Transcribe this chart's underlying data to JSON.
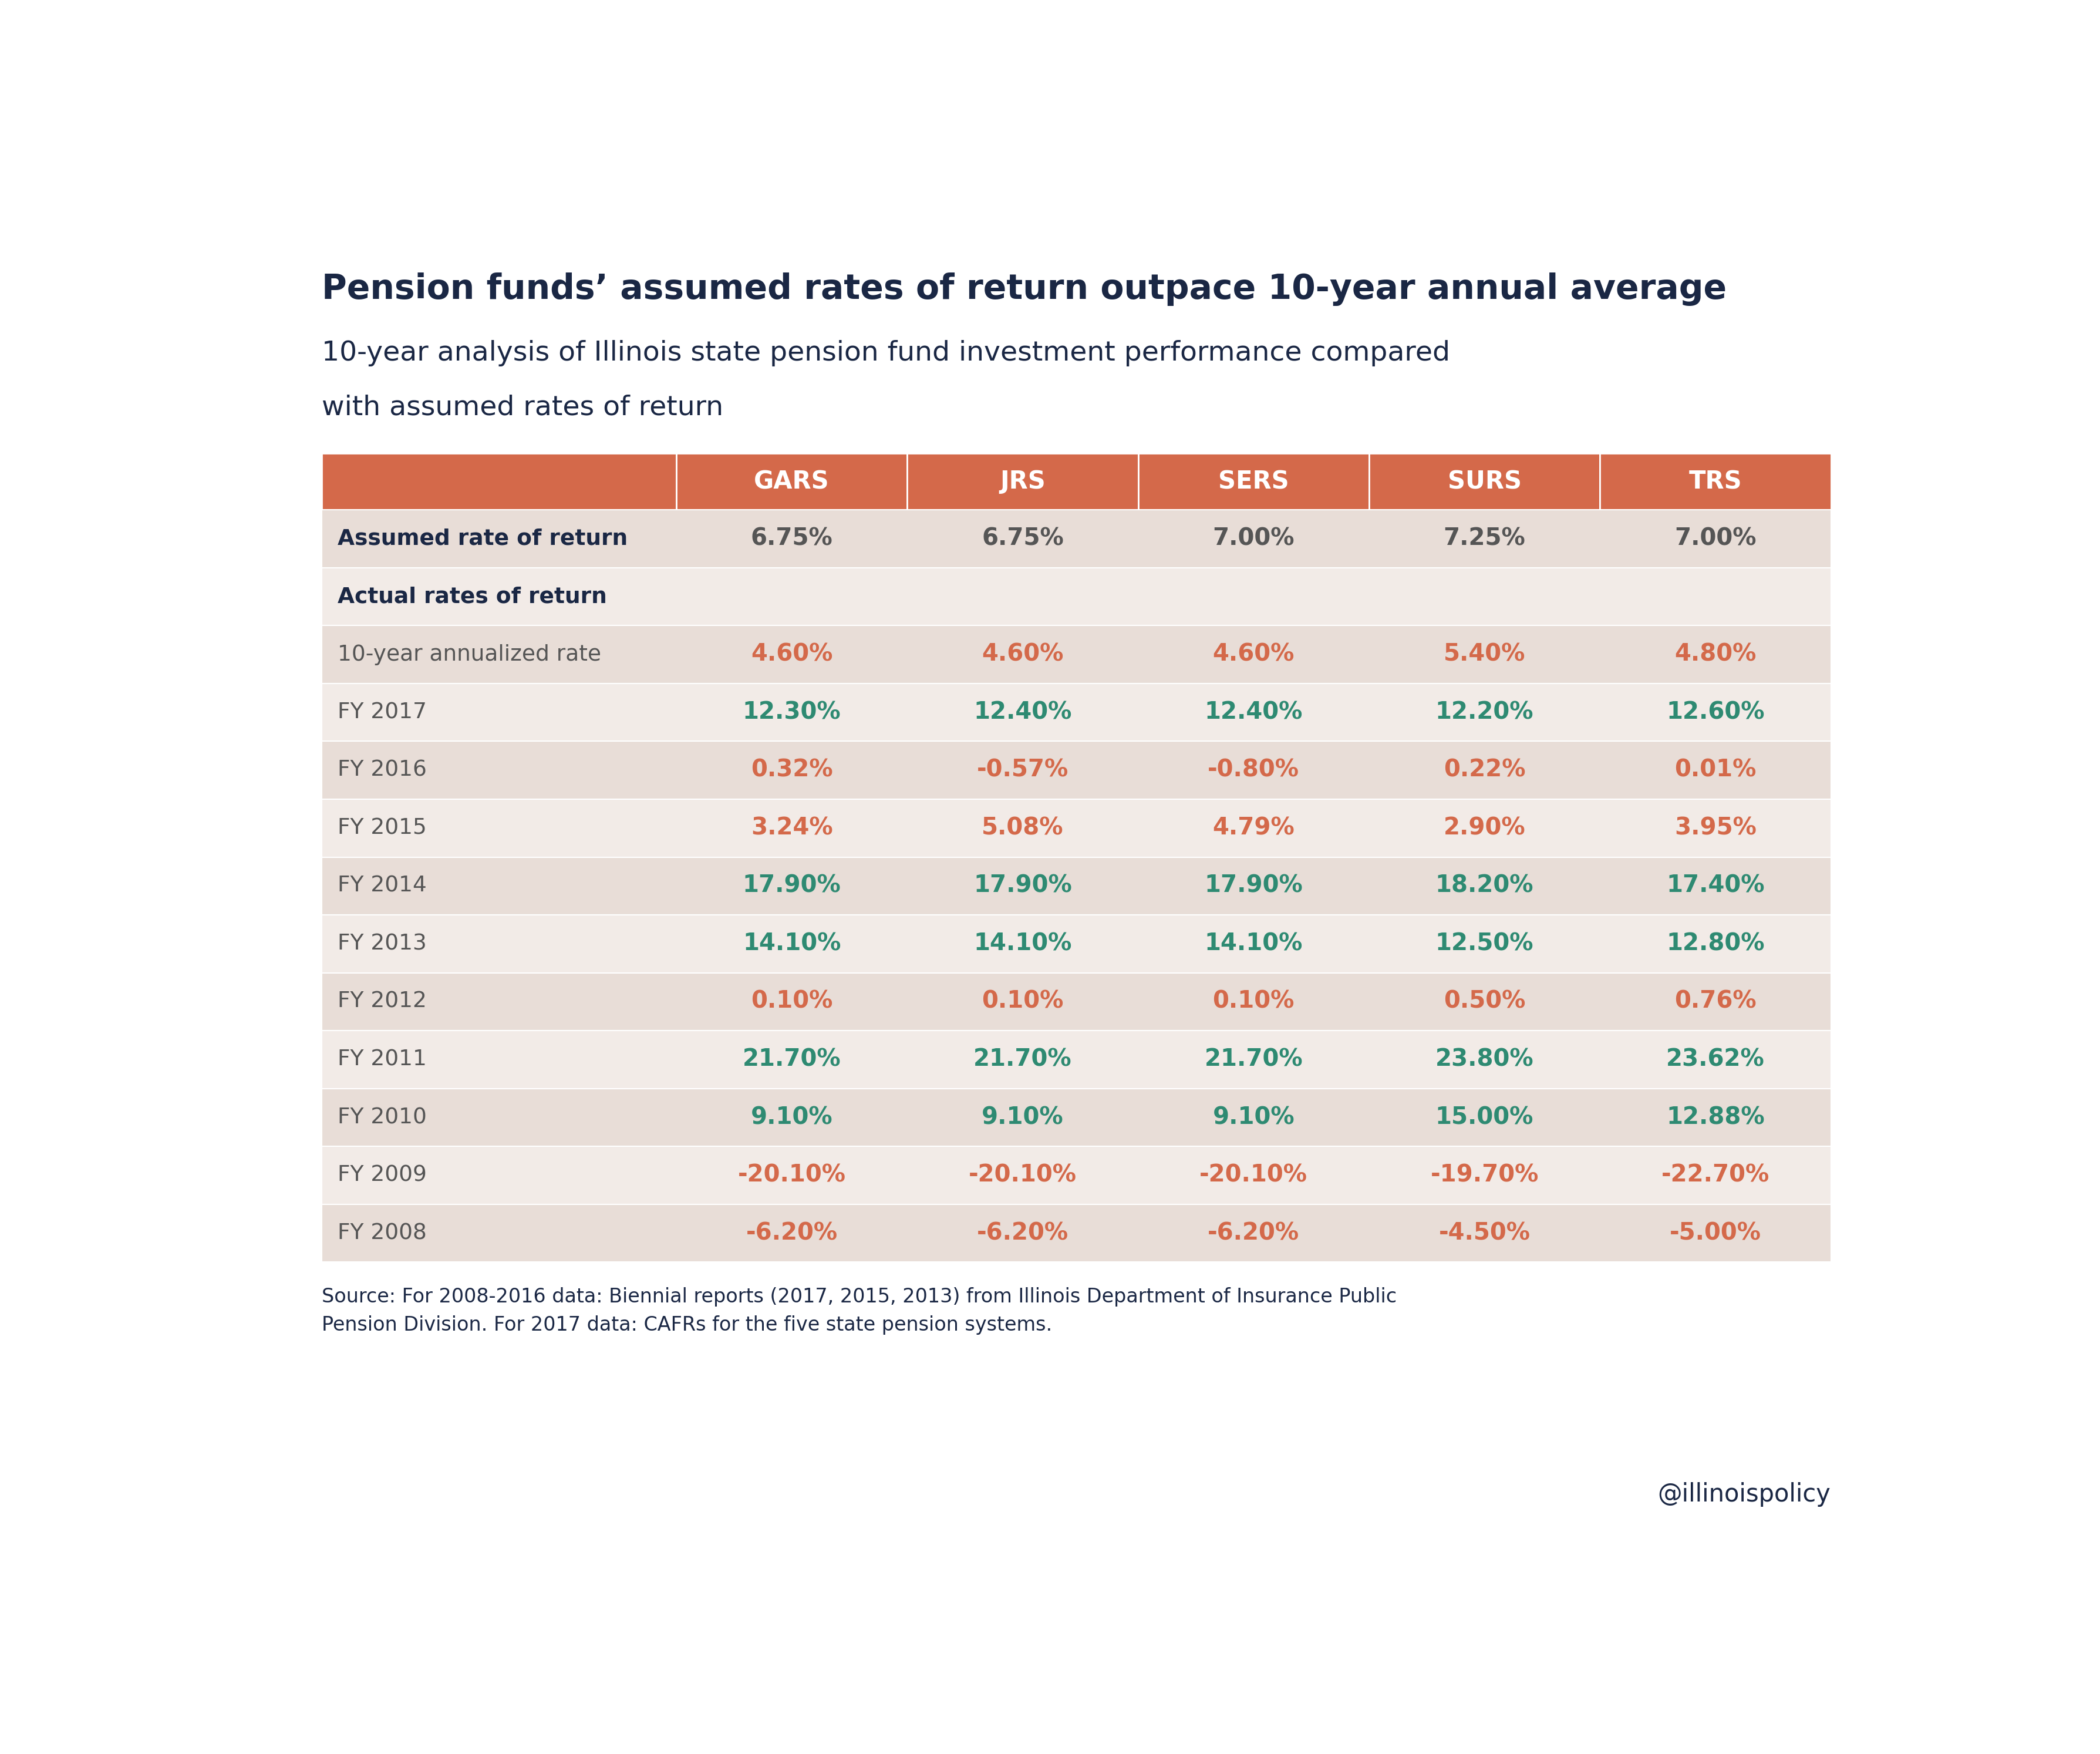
{
  "title": "Pension funds’ assumed rates of return outpace 10-year annual average",
  "subtitle_line1": "10-year analysis of Illinois state pension fund investment performance compared",
  "subtitle_line2": "with assumed rates of return",
  "source": "Source: For 2008-2016 data: Biennial reports (2017, 2015, 2013) from Illinois Department of Insurance Public\nPension Division. For 2017 data: CAFRs for the five state pension systems.",
  "watermark": "@illinoispolicy",
  "header_bg": "#d4694a",
  "header_text_color": "#ffffff",
  "row_bg_light": "#f2ebe7",
  "row_bg_dark": "#e8ddd7",
  "color_orange": "#d4694a",
  "color_green": "#2e8a72",
  "color_dark_navy": "#1a2744",
  "color_default": "#555555",
  "columns": [
    "",
    "GARS",
    "JRS",
    "SERS",
    "SURS",
    "TRS"
  ],
  "rows": [
    {
      "label": "Assumed rate of return",
      "values": [
        "6.75%",
        "6.75%",
        "7.00%",
        "7.25%",
        "7.00%"
      ],
      "colors": [
        "default",
        "default",
        "default",
        "default",
        "default"
      ],
      "bold_label": true,
      "bg": "dark"
    },
    {
      "label": "Actual rates of return",
      "values": [
        "",
        "",
        "",
        "",
        ""
      ],
      "colors": [
        "default",
        "default",
        "default",
        "default",
        "default"
      ],
      "bold_label": true,
      "bg": "light"
    },
    {
      "label": "10-year annualized rate",
      "values": [
        "4.60%",
        "4.60%",
        "4.60%",
        "5.40%",
        "4.80%"
      ],
      "colors": [
        "orange",
        "orange",
        "orange",
        "orange",
        "orange"
      ],
      "bold_label": false,
      "bg": "dark"
    },
    {
      "label": "FY 2017",
      "values": [
        "12.30%",
        "12.40%",
        "12.40%",
        "12.20%",
        "12.60%"
      ],
      "colors": [
        "green",
        "green",
        "green",
        "green",
        "green"
      ],
      "bold_label": false,
      "bg": "light"
    },
    {
      "label": "FY 2016",
      "values": [
        "0.32%",
        "-0.57%",
        "-0.80%",
        "0.22%",
        "0.01%"
      ],
      "colors": [
        "orange",
        "orange",
        "orange",
        "orange",
        "orange"
      ],
      "bold_label": false,
      "bg": "dark"
    },
    {
      "label": "FY 2015",
      "values": [
        "3.24%",
        "5.08%",
        "4.79%",
        "2.90%",
        "3.95%"
      ],
      "colors": [
        "orange",
        "orange",
        "orange",
        "orange",
        "orange"
      ],
      "bold_label": false,
      "bg": "light"
    },
    {
      "label": "FY 2014",
      "values": [
        "17.90%",
        "17.90%",
        "17.90%",
        "18.20%",
        "17.40%"
      ],
      "colors": [
        "green",
        "green",
        "green",
        "green",
        "green"
      ],
      "bold_label": false,
      "bg": "dark"
    },
    {
      "label": "FY 2013",
      "values": [
        "14.10%",
        "14.10%",
        "14.10%",
        "12.50%",
        "12.80%"
      ],
      "colors": [
        "green",
        "green",
        "green",
        "green",
        "green"
      ],
      "bold_label": false,
      "bg": "light"
    },
    {
      "label": "FY 2012",
      "values": [
        "0.10%",
        "0.10%",
        "0.10%",
        "0.50%",
        "0.76%"
      ],
      "colors": [
        "orange",
        "orange",
        "orange",
        "orange",
        "orange"
      ],
      "bold_label": false,
      "bg": "dark"
    },
    {
      "label": "FY 2011",
      "values": [
        "21.70%",
        "21.70%",
        "21.70%",
        "23.80%",
        "23.62%"
      ],
      "colors": [
        "green",
        "green",
        "green",
        "green",
        "green"
      ],
      "bold_label": false,
      "bg": "light"
    },
    {
      "label": "FY 2010",
      "values": [
        "9.10%",
        "9.10%",
        "9.10%",
        "15.00%",
        "12.88%"
      ],
      "colors": [
        "green",
        "green",
        "green",
        "green",
        "green"
      ],
      "bold_label": false,
      "bg": "dark"
    },
    {
      "label": "FY 2009",
      "values": [
        "-20.10%",
        "-20.10%",
        "-20.10%",
        "-19.70%",
        "-22.70%"
      ],
      "colors": [
        "orange",
        "orange",
        "orange",
        "orange",
        "orange"
      ],
      "bold_label": false,
      "bg": "light"
    },
    {
      "label": "FY 2008",
      "values": [
        "-6.20%",
        "-6.20%",
        "-6.20%",
        "-4.50%",
        "-5.00%"
      ],
      "colors": [
        "orange",
        "orange",
        "orange",
        "orange",
        "orange"
      ],
      "bold_label": false,
      "bg": "dark"
    }
  ]
}
